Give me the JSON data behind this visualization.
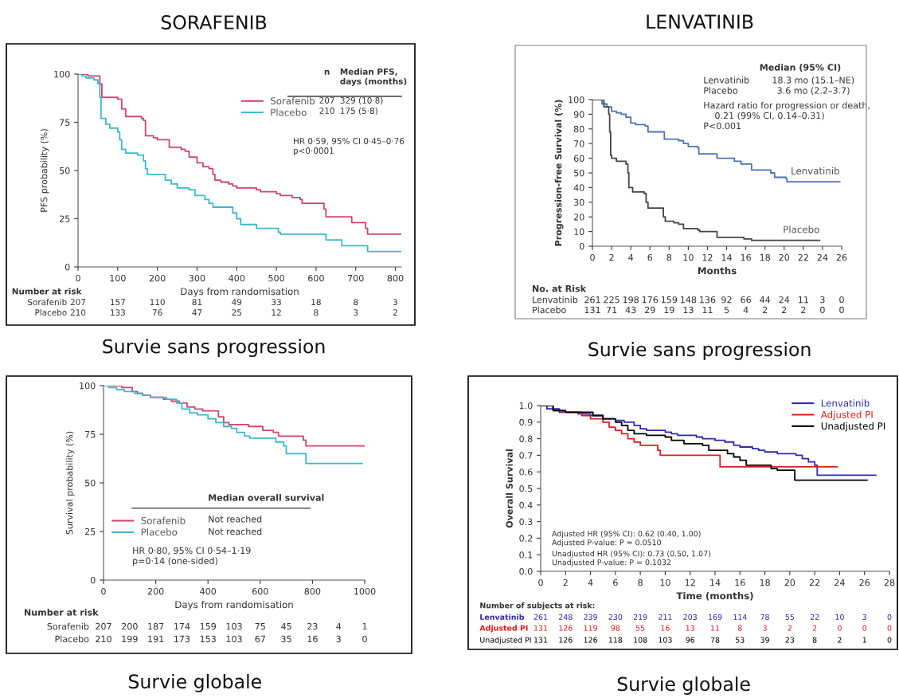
{
  "chart_data": [
    {
      "type": "step",
      "title": "SORAFENIB",
      "xlabel": "Days from randomisation",
      "ylabel": "PFS probability (%)",
      "xlim": [
        0,
        815
      ],
      "ylim": [
        0,
        100
      ],
      "xticks": [
        0,
        100,
        200,
        300,
        400,
        500,
        600,
        700,
        800
      ],
      "yticks": [
        0,
        25,
        50,
        75,
        100
      ],
      "legend": "top right",
      "series": [
        {
          "name": "Sorafenib",
          "color": "#d1436e",
          "x": [
            0,
            25,
            50,
            55,
            60,
            100,
            110,
            120,
            160,
            165,
            170,
            190,
            200,
            230,
            260,
            270,
            280,
            300,
            315,
            330,
            340,
            345,
            360,
            380,
            390,
            400,
            450,
            460,
            500,
            510,
            540,
            560,
            565,
            620,
            625,
            690,
            725,
            730,
            815
          ],
          "values": [
            100,
            99,
            99,
            95,
            88,
            87,
            82,
            78,
            77,
            76,
            68,
            67,
            66,
            62,
            61,
            60,
            57,
            54,
            52,
            51,
            48,
            45,
            44,
            43,
            42,
            41,
            40,
            39,
            38,
            37,
            36,
            35,
            33,
            30,
            26,
            23,
            20,
            17,
            17
          ]
        },
        {
          "name": "Placebo",
          "color": "#3bb8cc",
          "x": [
            0,
            10,
            20,
            40,
            50,
            55,
            58,
            70,
            80,
            100,
            105,
            110,
            120,
            150,
            165,
            170,
            175,
            210,
            220,
            235,
            250,
            280,
            295,
            320,
            330,
            340,
            380,
            390,
            400,
            410,
            450,
            505,
            510,
            625,
            665,
            730,
            815
          ],
          "values": [
            100,
            99,
            98,
            97,
            95,
            88,
            77,
            74,
            72,
            70,
            66,
            61,
            59,
            58,
            55,
            51,
            48,
            48,
            45,
            43,
            41,
            40,
            37,
            35,
            33,
            31,
            31,
            28,
            25,
            22,
            20,
            18,
            17,
            14,
            11,
            8,
            8
          ]
        }
      ],
      "annotations": [
        "n",
        "Median PFS,\ndays (months)",
        "207",
        "329 (10·8)",
        "210",
        "175 (5·8)",
        "HR 0·59, 95% CI 0·45–0·76\np<0·0001",
        "Number at risk",
        "Sorafenib 207 157 110 81 49 33 18 8 3",
        "Placebo 210 133 76 47 25 12 8 3 2",
        "Survie sans progression"
      ]
    },
    {
      "type": "step",
      "title": "LENVATINIB",
      "xlabel": "Months",
      "ylabel": "Progression-free Survival (%)",
      "xlim": [
        0,
        26
      ],
      "ylim": [
        0,
        100
      ],
      "xticks": [
        0,
        2,
        4,
        6,
        8,
        10,
        12,
        14,
        16,
        18,
        20,
        22,
        24,
        26
      ],
      "yticks": [
        0,
        10,
        20,
        30,
        40,
        50,
        60,
        70,
        80,
        90,
        100
      ],
      "legend": false,
      "series": [
        {
          "name": "Lenvatinib",
          "color": "#4a72b8",
          "x": [
            0,
            1,
            1.5,
            2,
            2.5,
            3,
            3.5,
            4,
            4.5,
            5.5,
            5.8,
            7.5,
            9,
            9.5,
            10,
            11,
            11.1,
            13,
            14.8,
            15.5,
            16.6,
            18.6,
            19,
            20.2,
            20.3,
            25.8
          ],
          "values": [
            100,
            97,
            95,
            92,
            91,
            90,
            88,
            84,
            83,
            82,
            78,
            73,
            72,
            70,
            68,
            67,
            63,
            60,
            58,
            56,
            52,
            50,
            47,
            46,
            44,
            44
          ]
        },
        {
          "name": "Placebo",
          "color": "#444444",
          "x": [
            0,
            1.2,
            1.7,
            1.8,
            1.9,
            2,
            2.5,
            3.5,
            3.7,
            3.8,
            4.2,
            5.4,
            5.6,
            5.8,
            7.4,
            7.6,
            8.5,
            9,
            9.5,
            11,
            11.2,
            13,
            15.8,
            16.6,
            23.7
          ],
          "values": [
            100,
            95,
            90,
            78,
            62,
            60,
            58,
            56,
            50,
            40,
            37,
            36,
            30,
            26,
            20,
            17,
            16,
            15,
            12,
            11,
            10,
            6,
            5,
            4,
            4
          ]
        }
      ],
      "annotations": [
        "Median (95% CI)",
        "Lenvatinib",
        "18.3 mo (15.1–NE)",
        "Placebo",
        "3.6 mo (2.2–3.7)",
        "Hazard ratio for progression or death,\n    0.21 (99% CI, 0.14–0.31)\nP<0.001",
        "No. at Risk",
        "Lenvatinib 261 225 198 176 159 148 136 92 66 44 24 11 3 0",
        "Placebo 131 71 43 29 19 13 11 5 4 2 2 2 0 0",
        "Survie sans progression"
      ]
    },
    {
      "type": "step",
      "xlabel": "Days from randomisation",
      "ylabel": "Survival probability (%)",
      "xlim": [
        0,
        1000
      ],
      "ylim": [
        0,
        100
      ],
      "xticks": [
        0,
        200,
        400,
        600,
        800,
        1000
      ],
      "yticks": [
        0,
        25,
        50,
        75,
        100
      ],
      "legend": "bottom left",
      "series": [
        {
          "name": "Sorafenib",
          "color": "#d1436e",
          "x": [
            0,
            70,
            90,
            110,
            130,
            150,
            180,
            230,
            260,
            290,
            320,
            350,
            380,
            440,
            460,
            480,
            555,
            610,
            650,
            670,
            765,
            775,
            1000
          ],
          "values": [
            100,
            99,
            99,
            97,
            96,
            95,
            94,
            93,
            92,
            91,
            89,
            88,
            87,
            84,
            81,
            80,
            79,
            77,
            76,
            74,
            72,
            69,
            69
          ]
        },
        {
          "name": "Placebo",
          "color": "#3bb8cc",
          "x": [
            0,
            20,
            50,
            80,
            120,
            150,
            180,
            240,
            280,
            300,
            330,
            360,
            400,
            430,
            460,
            490,
            510,
            540,
            560,
            660,
            690,
            700,
            775,
            990
          ],
          "values": [
            100,
            99,
            98,
            97,
            96,
            95,
            94,
            93,
            91,
            88,
            86,
            85,
            83,
            81,
            79,
            78,
            76,
            74,
            73,
            71,
            69,
            65,
            60,
            60
          ]
        }
      ],
      "annotations": [
        "Median overall survival",
        "Not reached",
        "Not reached",
        "HR 0·80, 95% CI 0·54–1·19\np=0·14 (one-sided)",
        "Number at risk",
        "Sorafenib 207 200 187 174 159 103 75 45 23 4 1",
        "Placebo 210 199 191 173 153 103 67 35 16 3 0",
        "Survie globale"
      ]
    },
    {
      "type": "step",
      "xlabel": "Time (months)",
      "ylabel": "Overall Survival",
      "xlim": [
        0,
        28
      ],
      "ylim": [
        0,
        1.0
      ],
      "xticks": [
        0,
        2,
        4,
        6,
        8,
        10,
        12,
        14,
        16,
        18,
        20,
        22,
        24,
        26,
        28
      ],
      "yticks": [
        {
          "value": 0,
          "label": "0.0"
        },
        0.1,
        0.2,
        0.3,
        0.4,
        0.5,
        0.6,
        0.7,
        0.8,
        0.9,
        {
          "value": 1,
          "label": "1.0"
        }
      ],
      "legend": "top right",
      "series": [
        {
          "name": "Lenvatinib",
          "color": "#2b2bb0",
          "x": [
            0,
            0.5,
            1.5,
            3,
            4,
            5,
            6,
            6.7,
            7.5,
            8,
            8.5,
            10,
            10.5,
            11,
            12.5,
            13,
            14,
            14.8,
            15.5,
            16,
            17,
            17.5,
            18,
            19,
            20.5,
            21,
            21.5,
            22,
            22.2,
            26.9
          ],
          "values": [
            1.0,
            0.98,
            0.96,
            0.95,
            0.94,
            0.92,
            0.91,
            0.9,
            0.88,
            0.86,
            0.85,
            0.84,
            0.83,
            0.82,
            0.81,
            0.8,
            0.79,
            0.78,
            0.76,
            0.75,
            0.74,
            0.73,
            0.72,
            0.71,
            0.7,
            0.68,
            0.66,
            0.64,
            0.58,
            0.58
          ]
        },
        {
          "name": "Adjusted PI",
          "color": "#e01b1b",
          "x": [
            0,
            1,
            1.8,
            3.3,
            4,
            5,
            5.5,
            6,
            6.5,
            7,
            7.5,
            8,
            9.4,
            9.6,
            14.4,
            23.8
          ],
          "values": [
            1.0,
            0.97,
            0.96,
            0.94,
            0.92,
            0.9,
            0.87,
            0.85,
            0.83,
            0.8,
            0.78,
            0.76,
            0.73,
            0.7,
            0.63,
            0.63
          ]
        },
        {
          "name": "Unadjusted PI",
          "color": "#000000",
          "x": [
            0,
            1,
            2,
            4.2,
            5,
            6,
            6.5,
            7,
            7.5,
            8.5,
            10,
            10.5,
            11.5,
            13,
            13.5,
            15,
            15.5,
            16,
            16.5,
            18.5,
            19,
            20.4,
            26.2
          ],
          "values": [
            1.0,
            0.97,
            0.96,
            0.94,
            0.92,
            0.9,
            0.88,
            0.85,
            0.83,
            0.82,
            0.81,
            0.79,
            0.77,
            0.76,
            0.73,
            0.71,
            0.69,
            0.67,
            0.64,
            0.62,
            0.61,
            0.55,
            0.55
          ]
        }
      ],
      "annotations": [
        "Adjusted HR (95% CI): 0.62 (0.40, 1.00)\nAdjusted P-value: P = 0.0510",
        "Unadjusted HR (95% CI): 0.73 (0.50, 1.07)\nUnadjusted P-value: P = 0.1032",
        "Number of subjects at risk:",
        "Lenvatinib 261 248 239 230 219 211 203 169 114 78 55 22 10 3 0",
        "Adjusted PI 131 126 119 98 55 16 13 11 8 3 2 2 0 0 0",
        "Unadjusted PI 131 126 126 118 108 103 96 78 53 39 23 8 2 1 0",
        "Survie globale"
      ]
    }
  ]
}
